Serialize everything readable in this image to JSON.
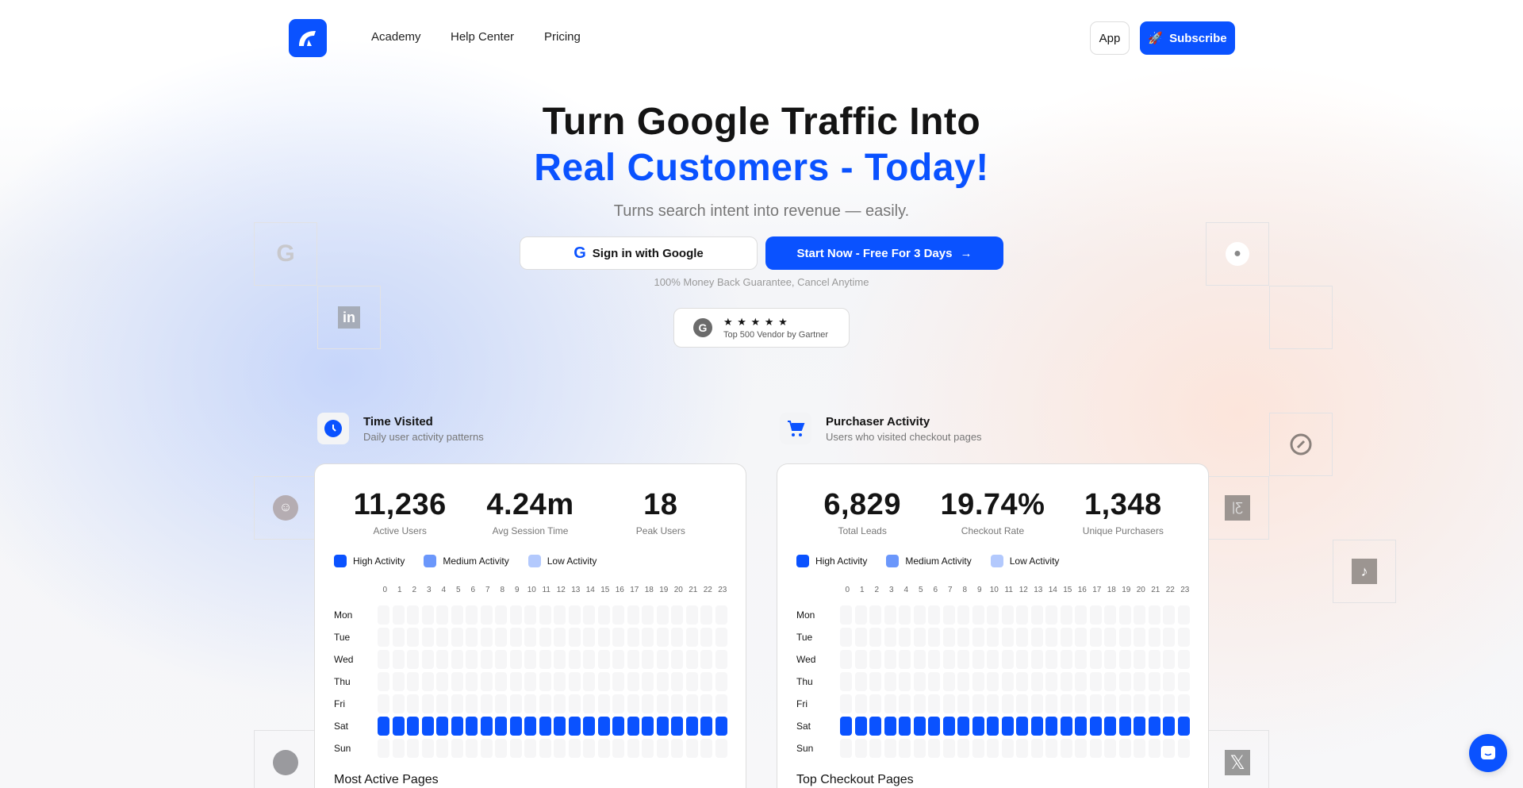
{
  "nav": {
    "items": [
      "Academy",
      "Help Center",
      "Pricing"
    ],
    "app_label": "App",
    "subscribe_label": "Subscribe"
  },
  "hero": {
    "title_line1": "Turn Google Traffic Into",
    "title_line2": "Real Customers - Today!",
    "subtitle": "Turns search intent into revenue — easily.",
    "google_button": "Sign in with Google",
    "start_button": "Start Now - Free For 3 Days",
    "guarantee": "100% Money Back Guarantee, Cancel Anytime",
    "badge": {
      "stars": "★ ★ ★ ★ ★",
      "rating": 5,
      "label": "Top 500 Vendor by Gartner"
    }
  },
  "colors": {
    "accent": "#0a52ff",
    "high": "#0a52ff",
    "medium": "#6b97fb",
    "low": "#b3c9fd",
    "empty": "#f6f6f7"
  },
  "tiles_left": [
    "google-icon",
    "linkedin-icon",
    "reddit-icon",
    "github-icon"
  ],
  "tiles_right": [
    "apple-icon",
    "compass-icon",
    "flag-icon",
    "tiktok-icon",
    "x-icon"
  ],
  "cards": [
    {
      "title": "Time Visited",
      "subtitle": "Daily user activity patterns",
      "icon": "clock-icon",
      "stats": [
        {
          "value": "11,236",
          "label": "Active Users"
        },
        {
          "value": "4.24m",
          "label": "Avg Session Time"
        },
        {
          "value": "18",
          "label": "Peak Users"
        }
      ],
      "footer": "Most Active Pages"
    },
    {
      "title": "Purchaser Activity",
      "subtitle": "Users who visited checkout pages",
      "icon": "cart-icon",
      "stats": [
        {
          "value": "6,829",
          "label": "Total Leads"
        },
        {
          "value": "19.74%",
          "label": "Checkout Rate"
        },
        {
          "value": "1,348",
          "label": "Unique Purchasers"
        }
      ],
      "footer": "Top Checkout Pages"
    }
  ],
  "legend": [
    "High Activity",
    "Medium Activity",
    "Low Activity"
  ],
  "heatmap": {
    "days": [
      "Mon",
      "Tue",
      "Wed",
      "Thu",
      "Fri",
      "Sat",
      "Sun"
    ],
    "hours": [
      "0",
      "1",
      "2",
      "3",
      "4",
      "5",
      "6",
      "7",
      "8",
      "9",
      "10",
      "11",
      "12",
      "13",
      "14",
      "15",
      "16",
      "17",
      "18",
      "19",
      "20",
      "21",
      "22",
      "23"
    ],
    "active_day": "Sat",
    "active_level": "high",
    "other_level": "none"
  }
}
